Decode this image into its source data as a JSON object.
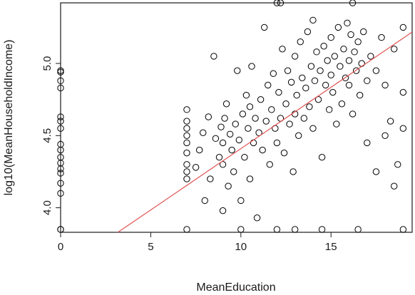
{
  "chart_data": {
    "type": "scatter",
    "xlabel": "MeanEducation",
    "ylabel": "log10(MeanHouseholdIncome)",
    "xlim": [
      0,
      19.5
    ],
    "ylim": [
      3.83,
      5.42
    ],
    "x_ticks": [
      0,
      5,
      10,
      15
    ],
    "x_tick_labels": [
      "0",
      "5",
      "10",
      "15"
    ],
    "y_ticks": [
      4.0,
      4.5,
      5.0
    ],
    "y_tick_labels": [
      "4.0",
      "4.5",
      "5.0"
    ],
    "grid": false,
    "legend": "none",
    "point_color": "#000000",
    "fit_line_color": "#e05050",
    "fit_line": {
      "slope": 0.085,
      "intercept": 3.56
    },
    "series": [
      {
        "points": [
          [
            0,
            3.85
          ],
          [
            0,
            3.85
          ],
          [
            0,
            4.1
          ],
          [
            0,
            4.17
          ],
          [
            0,
            4.24
          ],
          [
            0,
            4.27
          ],
          [
            0,
            4.31
          ],
          [
            0,
            4.35
          ],
          [
            0,
            4.4
          ],
          [
            0,
            4.44
          ],
          [
            0,
            4.55
          ],
          [
            0,
            4.6
          ],
          [
            0,
            4.63
          ],
          [
            0,
            4.83
          ],
          [
            0,
            4.88
          ],
          [
            0,
            4.94
          ],
          [
            0,
            4.95
          ],
          [
            7.0,
            3.85
          ],
          [
            7.0,
            4.2
          ],
          [
            7.0,
            4.25
          ],
          [
            7.0,
            4.3
          ],
          [
            7.0,
            4.38
          ],
          [
            7.0,
            4.45
          ],
          [
            7.0,
            4.5
          ],
          [
            7.0,
            4.55
          ],
          [
            7.0,
            4.6
          ],
          [
            7.0,
            4.68
          ],
          [
            7.5,
            4.28
          ],
          [
            7.7,
            4.4
          ],
          [
            7.9,
            4.52
          ],
          [
            8.0,
            4.05
          ],
          [
            8.2,
            4.63
          ],
          [
            8.3,
            4.2
          ],
          [
            8.5,
            5.05
          ],
          [
            8.6,
            4.48
          ],
          [
            8.8,
            4.35
          ],
          [
            8.9,
            4.56
          ],
          [
            9.0,
            3.98
          ],
          [
            9.0,
            4.3
          ],
          [
            9.0,
            4.45
          ],
          [
            9.1,
            4.62
          ],
          [
            9.2,
            4.72
          ],
          [
            9.3,
            4.15
          ],
          [
            9.4,
            4.51
          ],
          [
            9.5,
            4.4
          ],
          [
            9.6,
            4.25
          ],
          [
            9.7,
            4.58
          ],
          [
            9.8,
            4.95
          ],
          [
            9.9,
            4.47
          ],
          [
            10.0,
            3.85
          ],
          [
            10.0,
            4.05
          ],
          [
            10.1,
            4.65
          ],
          [
            10.2,
            4.35
          ],
          [
            10.3,
            4.78
          ],
          [
            10.4,
            4.55
          ],
          [
            10.5,
            4.2
          ],
          [
            10.5,
            4.7
          ],
          [
            10.6,
            4.98
          ],
          [
            10.7,
            4.45
          ],
          [
            10.8,
            4.62
          ],
          [
            10.9,
            3.93
          ],
          [
            11.0,
            4.52
          ],
          [
            11.1,
            4.75
          ],
          [
            11.2,
            4.4
          ],
          [
            11.3,
            5.25
          ],
          [
            11.4,
            4.6
          ],
          [
            11.5,
            4.85
          ],
          [
            11.6,
            4.3
          ],
          [
            11.7,
            4.68
          ],
          [
            11.8,
            4.93
          ],
          [
            11.9,
            4.55
          ],
          [
            12.0,
            5.42
          ],
          [
            12.0,
            4.45
          ],
          [
            12.0,
            3.85
          ],
          [
            12.1,
            4.8
          ],
          [
            12.2,
            4.62
          ],
          [
            12.3,
            5.1
          ],
          [
            12.4,
            4.38
          ],
          [
            12.5,
            4.72
          ],
          [
            12.6,
            4.95
          ],
          [
            12.7,
            4.58
          ],
          [
            12.8,
            4.87
          ],
          [
            12.9,
            4.25
          ],
          [
            13.0,
            4.65
          ],
          [
            13.0,
            5.05
          ],
          [
            13.1,
            4.78
          ],
          [
            13.2,
            4.5
          ],
          [
            13.3,
            5.15
          ],
          [
            13.4,
            4.9
          ],
          [
            13.5,
            4.62
          ],
          [
            13.6,
            4.83
          ],
          [
            13.7,
            5.22
          ],
          [
            13.8,
            4.7
          ],
          [
            13.9,
            4.98
          ],
          [
            14.0,
            4.55
          ],
          [
            14.0,
            5.3
          ],
          [
            14.1,
            4.88
          ],
          [
            14.2,
            5.08
          ],
          [
            14.3,
            4.75
          ],
          [
            14.4,
            4.95
          ],
          [
            14.5,
            4.35
          ],
          [
            14.6,
            5.12
          ],
          [
            14.7,
            4.85
          ],
          [
            14.8,
            5.02
          ],
          [
            14.9,
            4.68
          ],
          [
            15.0,
            5.18
          ],
          [
            15.0,
            4.92
          ],
          [
            15.1,
            4.8
          ],
          [
            15.2,
            5.05
          ],
          [
            15.3,
            4.58
          ],
          [
            15.4,
            5.25
          ],
          [
            15.5,
            4.98
          ],
          [
            15.6,
            4.72
          ],
          [
            15.7,
            5.1
          ],
          [
            15.8,
            4.9
          ],
          [
            15.9,
            5.28
          ],
          [
            16.0,
            4.85
          ],
          [
            16.0,
            5.02
          ],
          [
            16.1,
            5.2
          ],
          [
            16.2,
            4.65
          ],
          [
            16.3,
            5.08
          ],
          [
            16.4,
            4.95
          ],
          [
            16.5,
            5.15
          ],
          [
            16.6,
            4.78
          ],
          [
            16.7,
            5.0
          ],
          [
            16.8,
            5.22
          ],
          [
            17.0,
            4.88
          ],
          [
            17.2,
            5.05
          ],
          [
            17.5,
            4.95
          ],
          [
            17.8,
            5.18
          ],
          [
            18.0,
            4.85
          ],
          [
            18.3,
            4.6
          ],
          [
            18.5,
            5.1
          ],
          [
            18.7,
            4.3
          ],
          [
            19.0,
            5.25
          ],
          [
            19.0,
            4.8
          ],
          [
            19.0,
            4.55
          ],
          [
            16.2,
            5.42
          ],
          [
            12.2,
            5.42
          ],
          [
            14.5,
            3.85
          ],
          [
            16.5,
            3.85
          ],
          [
            13.0,
            3.85
          ],
          [
            17.0,
            4.45
          ],
          [
            18.0,
            4.5
          ],
          [
            17.5,
            4.25
          ],
          [
            19.0,
            3.85
          ],
          [
            18.5,
            4.15
          ]
        ]
      }
    ]
  }
}
